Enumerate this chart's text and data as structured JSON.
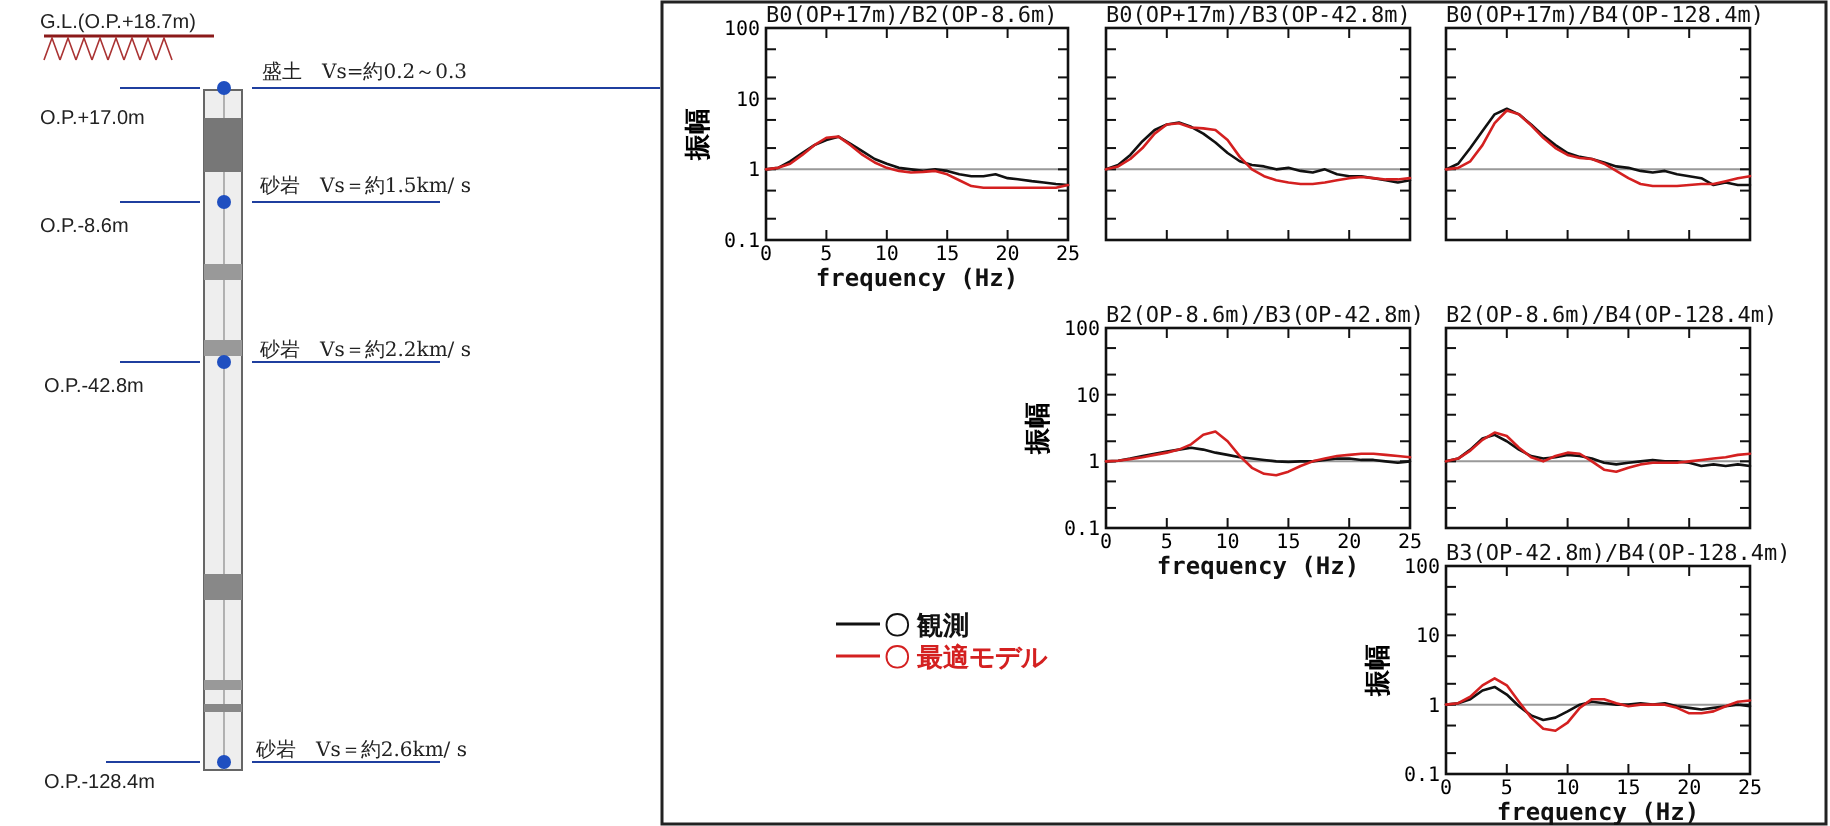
{
  "chart_data": [
    {
      "type": "other",
      "annotations": [
        "G.L.(O.P.+18.7m)",
        "O.P.+17.0m",
        "O.P.-8.6m",
        "O.P.-42.8m",
        "O.P.-128.4m",
        "盛土　Vs=約0.2～0.3",
        "砂岩　Vs＝約1.5km/ s",
        "砂岩　Vs＝約2.2km/ s",
        "砂岩　Vs＝約2.6km/ s"
      ]
    },
    {
      "type": "line",
      "title": "B0(OP+17m)/B2(OP-8.6m)",
      "xlabel": "frequency (Hz)",
      "ylabel": "振幅",
      "log": "y",
      "xlim": [
        0,
        25
      ],
      "ylim": [
        0.1,
        100
      ],
      "xticks": [
        0,
        5,
        10,
        15,
        20,
        25
      ],
      "yticks": [
        0.1,
        {
          "value": 0.2,
          "label": null
        },
        {
          "value": 0.5,
          "label": null
        },
        1,
        {
          "value": 2,
          "label": null
        },
        {
          "value": 5,
          "label": null
        },
        10,
        {
          "value": 20,
          "label": null
        },
        {
          "value": 50,
          "label": null
        },
        100
      ],
      "ref_lines": [
        {
          "axis": "y",
          "value": 1,
          "color": "#999999"
        }
      ],
      "x": [
        0,
        1,
        2,
        3,
        4,
        5,
        6,
        7,
        8,
        9,
        10,
        11,
        12,
        13,
        14,
        15,
        16,
        17,
        18,
        19,
        20,
        21,
        22,
        23,
        24,
        25
      ],
      "series": [
        {
          "color": "#111111",
          "values": [
            1.0,
            1.05,
            1.3,
            1.7,
            2.2,
            2.6,
            2.9,
            2.3,
            1.8,
            1.4,
            1.2,
            1.05,
            1.0,
            0.95,
            1.0,
            0.95,
            0.85,
            0.8,
            0.8,
            0.85,
            0.75,
            0.72,
            0.68,
            0.65,
            0.62,
            0.6
          ]
        },
        {
          "color": "#d42020",
          "values": [
            1.0,
            1.05,
            1.2,
            1.6,
            2.2,
            2.8,
            2.9,
            2.2,
            1.6,
            1.25,
            1.05,
            0.95,
            0.9,
            0.92,
            0.95,
            0.85,
            0.7,
            0.58,
            0.55,
            0.55,
            0.55,
            0.55,
            0.55,
            0.55,
            0.55,
            0.6
          ]
        }
      ]
    },
    {
      "type": "line",
      "title": "B0(OP+17m)/B3(OP-42.8m)",
      "log": "y",
      "tick_labels": false,
      "xlim": [
        0,
        25
      ],
      "ylim": [
        0.1,
        100
      ],
      "xticks": [
        0,
        5,
        10,
        15,
        20,
        25
      ],
      "yticks": [
        0.1,
        {
          "value": 0.2,
          "label": null
        },
        {
          "value": 0.5,
          "label": null
        },
        1,
        {
          "value": 2,
          "label": null
        },
        {
          "value": 5,
          "label": null
        },
        10,
        {
          "value": 20,
          "label": null
        },
        {
          "value": 50,
          "label": null
        },
        100
      ],
      "ref_lines": [
        {
          "axis": "y",
          "value": 1,
          "color": "#999999"
        }
      ],
      "x": [
        0,
        1,
        2,
        3,
        4,
        5,
        6,
        7,
        8,
        9,
        10,
        11,
        12,
        13,
        14,
        15,
        16,
        17,
        18,
        19,
        20,
        21,
        22,
        23,
        24,
        25
      ],
      "series": [
        {
          "color": "#111111",
          "values": [
            1.0,
            1.15,
            1.6,
            2.5,
            3.6,
            4.3,
            4.6,
            4.0,
            3.2,
            2.4,
            1.7,
            1.3,
            1.15,
            1.1,
            1.0,
            1.05,
            0.95,
            0.9,
            1.0,
            0.85,
            0.8,
            0.8,
            0.75,
            0.7,
            0.65,
            0.7
          ]
        },
        {
          "color": "#d42020",
          "values": [
            1.0,
            1.1,
            1.4,
            2.0,
            3.2,
            4.3,
            4.5,
            3.9,
            3.8,
            3.6,
            2.6,
            1.5,
            1.0,
            0.8,
            0.7,
            0.65,
            0.62,
            0.62,
            0.65,
            0.7,
            0.75,
            0.78,
            0.75,
            0.72,
            0.72,
            0.75
          ]
        }
      ]
    },
    {
      "type": "line",
      "title": "B0(OP+17m)/B4(OP-128.4m)",
      "log": "y",
      "tick_labels": false,
      "xlim": [
        0,
        25
      ],
      "ylim": [
        0.1,
        100
      ],
      "xticks": [
        0,
        5,
        10,
        15,
        20,
        25
      ],
      "yticks": [
        0.1,
        {
          "value": 0.2,
          "label": null
        },
        {
          "value": 0.5,
          "label": null
        },
        1,
        {
          "value": 2,
          "label": null
        },
        {
          "value": 5,
          "label": null
        },
        10,
        {
          "value": 20,
          "label": null
        },
        {
          "value": 50,
          "label": null
        },
        100
      ],
      "ref_lines": [
        {
          "axis": "y",
          "value": 1,
          "color": "#999999"
        }
      ],
      "x": [
        0,
        1,
        2,
        3,
        4,
        5,
        6,
        7,
        8,
        9,
        10,
        11,
        12,
        13,
        14,
        15,
        16,
        17,
        18,
        19,
        20,
        21,
        22,
        23,
        24,
        25
      ],
      "series": [
        {
          "color": "#111111",
          "values": [
            1.0,
            1.2,
            2.0,
            3.5,
            6.0,
            7.2,
            6.0,
            4.3,
            3.0,
            2.2,
            1.7,
            1.5,
            1.4,
            1.25,
            1.1,
            1.05,
            0.95,
            0.9,
            0.95,
            0.85,
            0.8,
            0.75,
            0.6,
            0.65,
            0.6,
            0.6
          ]
        },
        {
          "color": "#d42020",
          "values": [
            1.0,
            1.05,
            1.3,
            2.2,
            4.5,
            6.8,
            6.0,
            4.2,
            2.8,
            2.0,
            1.6,
            1.45,
            1.4,
            1.2,
            0.95,
            0.75,
            0.62,
            0.58,
            0.58,
            0.58,
            0.6,
            0.62,
            0.62,
            0.68,
            0.75,
            0.8
          ]
        }
      ]
    },
    {
      "type": "line",
      "title": "B2(OP-8.6m)/B3(OP-42.8m)",
      "xlabel": "frequency (Hz)",
      "ylabel": "振幅",
      "log": "y",
      "legend": "left",
      "xlim": [
        0,
        25
      ],
      "ylim": [
        0.1,
        100
      ],
      "xticks": [
        0,
        5,
        10,
        15,
        20,
        25
      ],
      "yticks": [
        0.1,
        {
          "value": 0.2,
          "label": null
        },
        {
          "value": 0.5,
          "label": null
        },
        1,
        {
          "value": 2,
          "label": null
        },
        {
          "value": 5,
          "label": null
        },
        10,
        {
          "value": 20,
          "label": null
        },
        {
          "value": 50,
          "label": null
        },
        100
      ],
      "ref_lines": [
        {
          "axis": "y",
          "value": 1,
          "color": "#999999"
        }
      ],
      "x": [
        0,
        1,
        2,
        3,
        4,
        5,
        6,
        7,
        8,
        9,
        10,
        11,
        12,
        13,
        14,
        15,
        16,
        17,
        18,
        19,
        20,
        21,
        22,
        23,
        24,
        25
      ],
      "series": [
        {
          "name": "〇 観測",
          "color": "#111111",
          "values": [
            1.0,
            1.02,
            1.1,
            1.2,
            1.3,
            1.4,
            1.5,
            1.6,
            1.5,
            1.35,
            1.25,
            1.15,
            1.1,
            1.05,
            1.0,
            0.98,
            1.0,
            1.0,
            1.05,
            1.1,
            1.1,
            1.05,
            1.05,
            1.0,
            0.95,
            1.0
          ]
        },
        {
          "name": "〇 最適モデル",
          "color": "#d42020",
          "values": [
            1.0,
            1.02,
            1.08,
            1.15,
            1.25,
            1.35,
            1.5,
            1.8,
            2.5,
            2.8,
            2.0,
            1.2,
            0.8,
            0.65,
            0.62,
            0.7,
            0.85,
            1.0,
            1.1,
            1.2,
            1.25,
            1.3,
            1.3,
            1.25,
            1.2,
            1.15
          ]
        }
      ]
    },
    {
      "type": "line",
      "title": "B2(OP-8.6m)/B4(OP-128.4m)",
      "log": "y",
      "tick_labels": false,
      "xlim": [
        0,
        25
      ],
      "ylim": [
        0.1,
        100
      ],
      "xticks": [
        0,
        5,
        10,
        15,
        20,
        25
      ],
      "yticks": [
        0.1,
        {
          "value": 0.2,
          "label": null
        },
        {
          "value": 0.5,
          "label": null
        },
        1,
        {
          "value": 2,
          "label": null
        },
        {
          "value": 5,
          "label": null
        },
        10,
        {
          "value": 20,
          "label": null
        },
        {
          "value": 50,
          "label": null
        },
        100
      ],
      "ref_lines": [
        {
          "axis": "y",
          "value": 1,
          "color": "#999999"
        }
      ],
      "x": [
        0,
        1,
        2,
        3,
        4,
        5,
        6,
        7,
        8,
        9,
        10,
        11,
        12,
        13,
        14,
        15,
        16,
        17,
        18,
        19,
        20,
        21,
        22,
        23,
        24,
        25
      ],
      "series": [
        {
          "color": "#111111",
          "values": [
            1.0,
            1.1,
            1.5,
            2.2,
            2.5,
            2.0,
            1.5,
            1.2,
            1.1,
            1.15,
            1.25,
            1.2,
            1.1,
            0.95,
            0.9,
            0.95,
            1.0,
            1.05,
            1.0,
            1.0,
            0.95,
            0.85,
            0.9,
            0.85,
            0.9,
            0.85
          ]
        },
        {
          "color": "#d42020",
          "values": [
            1.0,
            1.1,
            1.45,
            2.1,
            2.7,
            2.4,
            1.6,
            1.15,
            1.0,
            1.2,
            1.35,
            1.3,
            1.0,
            0.75,
            0.7,
            0.8,
            0.9,
            0.95,
            0.95,
            0.95,
            1.0,
            1.05,
            1.1,
            1.15,
            1.25,
            1.3
          ]
        }
      ]
    },
    {
      "type": "line",
      "title": "B3(OP-42.8m)/B4(OP-128.4m)",
      "xlabel": "frequency (Hz)",
      "ylabel": "振幅",
      "log": "y",
      "xlim": [
        0,
        25
      ],
      "ylim": [
        0.1,
        100
      ],
      "xticks": [
        0,
        5,
        10,
        15,
        20,
        25
      ],
      "yticks": [
        0.1,
        {
          "value": 0.2,
          "label": null
        },
        {
          "value": 0.5,
          "label": null
        },
        1,
        {
          "value": 2,
          "label": null
        },
        {
          "value": 5,
          "label": null
        },
        10,
        {
          "value": 20,
          "label": null
        },
        {
          "value": 50,
          "label": null
        },
        100
      ],
      "ref_lines": [
        {
          "axis": "y",
          "value": 1,
          "color": "#999999"
        }
      ],
      "x": [
        0,
        1,
        2,
        3,
        4,
        5,
        6,
        7,
        8,
        9,
        10,
        11,
        12,
        13,
        14,
        15,
        16,
        17,
        18,
        19,
        20,
        21,
        22,
        23,
        24,
        25
      ],
      "series": [
        {
          "color": "#111111",
          "values": [
            1.0,
            1.05,
            1.2,
            1.6,
            1.8,
            1.4,
            0.95,
            0.7,
            0.6,
            0.65,
            0.8,
            1.0,
            1.1,
            1.05,
            1.0,
            1.0,
            1.05,
            1.0,
            1.05,
            0.95,
            0.9,
            0.85,
            0.9,
            0.95,
            1.0,
            0.95
          ]
        },
        {
          "color": "#d42020",
          "values": [
            1.0,
            1.05,
            1.3,
            1.9,
            2.4,
            1.9,
            1.1,
            0.65,
            0.45,
            0.42,
            0.55,
            0.9,
            1.2,
            1.2,
            1.05,
            0.95,
            1.0,
            1.0,
            1.0,
            0.9,
            0.75,
            0.75,
            0.8,
            0.95,
            1.1,
            1.15
          ]
        }
      ]
    }
  ]
}
